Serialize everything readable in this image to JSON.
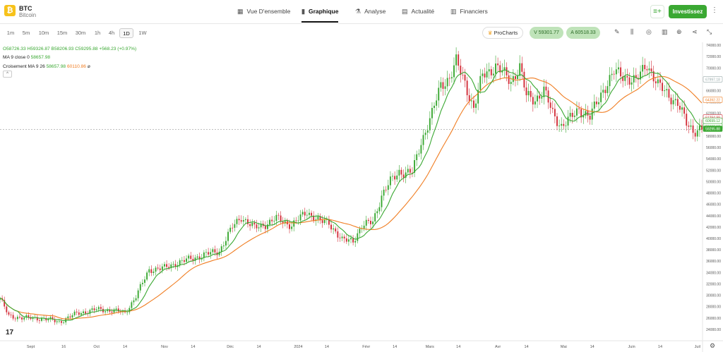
{
  "header": {
    "symbol": "BTC",
    "name": "Bitcoin",
    "logo_glyph": "₿",
    "tabs": [
      {
        "label": "Vue D'ensemble",
        "icon": "grid-icon",
        "glyph": "▦"
      },
      {
        "label": "Graphique",
        "icon": "candles-icon",
        "glyph": "▮",
        "active": true
      },
      {
        "label": "Analyse",
        "icon": "flask-icon",
        "glyph": "⚗"
      },
      {
        "label": "Actualité",
        "icon": "news-icon",
        "glyph": "▤"
      },
      {
        "label": "Financiers",
        "icon": "report-icon",
        "glyph": "▥"
      }
    ],
    "invest_label": "Investissez",
    "watch_glyph": "≡+",
    "more_glyph": "⋮"
  },
  "toolbar": {
    "timeframes": [
      "1m",
      "5m",
      "10m",
      "15m",
      "30m",
      "1h",
      "4h",
      "1D",
      "1W"
    ],
    "active_timeframe": "1D",
    "procharts_label": "ProCharts",
    "procharts_glyph": "♛",
    "sell_label": "V 59301.77",
    "buy_label": "A 60518.33",
    "tools": [
      {
        "name": "pencil-icon",
        "glyph": "✎"
      },
      {
        "name": "candle-type-icon",
        "glyph": "⫼"
      },
      {
        "name": "indicators-icon",
        "glyph": "◎"
      },
      {
        "name": "bars-icon",
        "glyph": "▥"
      },
      {
        "name": "add-icon",
        "glyph": "⊕"
      },
      {
        "name": "share-icon",
        "glyph": "⋖"
      },
      {
        "name": "collapse-icon",
        "glyph": "⤡"
      }
    ]
  },
  "legend": {
    "ohlc": "O58726.33 H59326.87 B58206.93 C59295.88 +568.23 (+0.97%)",
    "ma_label": "MA 9 close 0",
    "ma_value": "58657.98",
    "cross_label": "Croisement MA 9 26",
    "cross_fast": "58657.98",
    "cross_slow": "60110.86",
    "cross_mark": "⌀",
    "collapse_glyph": "^"
  },
  "chart_data": {
    "type": "candlestick",
    "y_ticks": [
      24000,
      26000,
      28000,
      30000,
      32000,
      34000,
      36000,
      38000,
      40000,
      42000,
      44000,
      46000,
      48000,
      50000,
      52000,
      54000,
      56000,
      58000,
      60000,
      62000,
      64000,
      66000,
      68000,
      70000,
      72000,
      74000
    ],
    "ylim": [
      22500,
      74500
    ],
    "x_labels": [
      {
        "label": "Sept",
        "day": 14
      },
      {
        "label": "16",
        "day": 29
      },
      {
        "label": "Oct",
        "day": 44
      },
      {
        "label": "14",
        "day": 57
      },
      {
        "label": "Nov",
        "day": 75
      },
      {
        "label": "14",
        "day": 88
      },
      {
        "label": "Déc",
        "day": 105
      },
      {
        "label": "14",
        "day": 118
      },
      {
        "label": "2024",
        "day": 136
      },
      {
        "label": "14",
        "day": 149
      },
      {
        "label": "Févr",
        "day": 167
      },
      {
        "label": "14",
        "day": 180
      },
      {
        "label": "Mars",
        "day": 196
      },
      {
        "label": "14",
        "day": 209
      },
      {
        "label": "Avr",
        "day": 227
      },
      {
        "label": "14",
        "day": 240
      },
      {
        "label": "Mai",
        "day": 257
      },
      {
        "label": "14",
        "day": 270
      },
      {
        "label": "Juin",
        "day": 288
      },
      {
        "label": "14",
        "day": 301
      },
      {
        "label": "Juil",
        "day": 318
      }
    ],
    "day_range": [
      0,
      320
    ],
    "anchors": [
      [
        0,
        29500
      ],
      [
        4,
        26300
      ],
      [
        12,
        26000
      ],
      [
        20,
        25900
      ],
      [
        27,
        25300
      ],
      [
        35,
        26800
      ],
      [
        44,
        27500
      ],
      [
        52,
        27300
      ],
      [
        57,
        26900
      ],
      [
        62,
        29800
      ],
      [
        68,
        34500
      ],
      [
        75,
        34800
      ],
      [
        80,
        35600
      ],
      [
        86,
        36300
      ],
      [
        93,
        37100
      ],
      [
        100,
        37800
      ],
      [
        106,
        42000
      ],
      [
        110,
        43800
      ],
      [
        116,
        41800
      ],
      [
        121,
        42500
      ],
      [
        126,
        43500
      ],
      [
        133,
        42300
      ],
      [
        140,
        44700
      ],
      [
        146,
        42900
      ],
      [
        150,
        42800
      ],
      [
        156,
        39600
      ],
      [
        161,
        39700
      ],
      [
        165,
        42100
      ],
      [
        170,
        43000
      ],
      [
        174,
        47500
      ],
      [
        178,
        50000
      ],
      [
        182,
        51800
      ],
      [
        185,
        51500
      ],
      [
        188,
        51600
      ],
      [
        192,
        57000
      ],
      [
        197,
        61900
      ],
      [
        201,
        67000
      ],
      [
        205,
        68300
      ],
      [
        208,
        71000
      ],
      [
        212,
        67400
      ],
      [
        216,
        62800
      ],
      [
        220,
        68700
      ],
      [
        226,
        70300
      ],
      [
        233,
        67700
      ],
      [
        237,
        70200
      ],
      [
        240,
        65000
      ],
      [
        244,
        64500
      ],
      [
        248,
        66000
      ],
      [
        252,
        62000
      ],
      [
        256,
        59800
      ],
      [
        260,
        61000
      ],
      [
        264,
        62800
      ],
      [
        269,
        61300
      ],
      [
        275,
        66200
      ],
      [
        280,
        69200
      ],
      [
        285,
        68500
      ],
      [
        290,
        67600
      ],
      [
        295,
        70800
      ],
      [
        300,
        66900
      ],
      [
        305,
        65200
      ],
      [
        309,
        63800
      ],
      [
        313,
        60200
      ],
      [
        316,
        59000
      ],
      [
        319,
        59296
      ]
    ],
    "ma_fast_color": "#3aa832",
    "ma_slow_color": "#f07d22",
    "up_color": "#3aa832",
    "down_color": "#d32f3a",
    "price_tags": [
      {
        "label": "67997.18",
        "value": 67997.18,
        "style": "outline-gray"
      },
      {
        "label": "64392.22",
        "value": 64392.22,
        "style": "outline-orange"
      },
      {
        "label": "61294.99",
        "value": 61294.99,
        "style": "outline-red"
      },
      {
        "label": "60699.12",
        "value": 60699.12,
        "style": "outline-green"
      },
      {
        "label": "59699.12",
        "value": 59699.12,
        "style": "outline-green"
      },
      {
        "label": "59295.88",
        "value": 59295.88,
        "style": "solid-green"
      }
    ]
  },
  "footer": {
    "tv_logo": "17",
    "settings_glyph": "⚙"
  }
}
